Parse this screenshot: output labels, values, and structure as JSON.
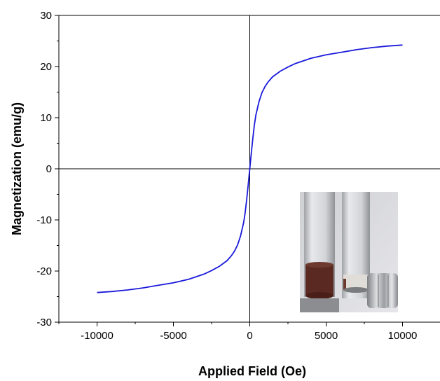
{
  "chart_data": {
    "type": "line",
    "title": "",
    "xlabel": "Applied Field (Oe)",
    "ylabel": "Magnetization (emu/g)",
    "xlim": [
      -12500,
      12500
    ],
    "ylim": [
      -30,
      30
    ],
    "xticks": [
      -10000,
      -5000,
      0,
      5000,
      10000
    ],
    "yticks": [
      -30,
      -20,
      -10,
      0,
      10,
      20,
      30
    ],
    "grid": false,
    "zero_lines": true,
    "series": [
      {
        "color": "#1a1adb",
        "x": [
          -10000,
          -9000,
          -8000,
          -7000,
          -6000,
          -5000,
          -4000,
          -3000,
          -2500,
          -2000,
          -1500,
          -1200,
          -1000,
          -800,
          -600,
          -400,
          -300,
          -200,
          -100,
          0,
          100,
          200,
          300,
          400,
          600,
          800,
          1000,
          1200,
          1500,
          2000,
          2500,
          3000,
          4000,
          5000,
          6000,
          7000,
          8000,
          9000,
          10000
        ],
        "y": [
          -24.2,
          -24.0,
          -23.7,
          -23.3,
          -22.8,
          -22.3,
          -21.6,
          -20.6,
          -19.9,
          -19.1,
          -18.0,
          -17.0,
          -16.1,
          -14.9,
          -13.1,
          -10.5,
          -8.5,
          -6.0,
          -3.1,
          0,
          3.1,
          6.0,
          8.5,
          10.5,
          13.1,
          14.9,
          16.1,
          17.0,
          18.0,
          19.1,
          19.9,
          20.6,
          21.6,
          22.3,
          22.8,
          23.3,
          23.7,
          24.0,
          24.2
        ]
      }
    ],
    "inset": {
      "description_icon": "photo-inset-vials-and-magnet",
      "colors": {
        "background": "#d9d9de",
        "liquid": "#5a2a22",
        "magnet": "#b0b2b6"
      }
    }
  }
}
